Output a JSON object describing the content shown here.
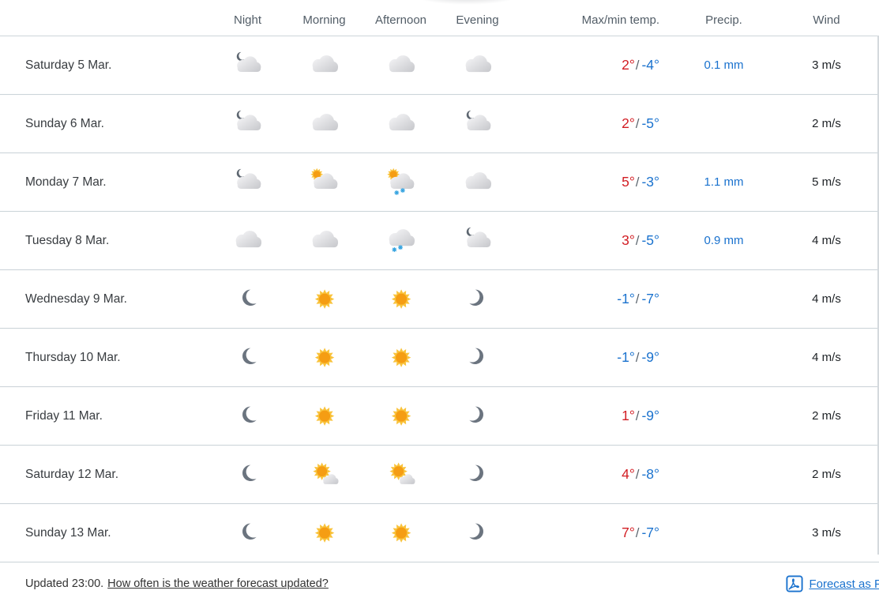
{
  "table": {
    "header": {
      "day": "",
      "night": "Night",
      "morning": "Morning",
      "afternoon": "Afternoon",
      "evening": "Evening",
      "temp": "Max/min temp.",
      "precip": "Precip.",
      "wind": "Wind"
    },
    "temp_separator": "/",
    "rows": [
      {
        "day": "Saturday 5 Mar.",
        "night": "moon-cloud",
        "morning": "cloud",
        "afternoon": "cloud",
        "evening": "cloud",
        "temp_max": "2°",
        "temp_min": "-4°",
        "precip": "0.1 mm",
        "wind": "3 m/s"
      },
      {
        "day": "Sunday 6 Mar.",
        "night": "moon-cloud",
        "morning": "cloud",
        "afternoon": "cloud",
        "evening": "moon-cloud",
        "temp_max": "2°",
        "temp_min": "-5°",
        "precip": "",
        "wind": "2 m/s"
      },
      {
        "day": "Monday 7 Mar.",
        "night": "moon-cloud",
        "morning": "sun-cloud",
        "afternoon": "sun-cloud-snow",
        "evening": "cloud",
        "temp_max": "5°",
        "temp_min": "-3°",
        "precip": "1.1 mm",
        "wind": "5 m/s"
      },
      {
        "day": "Tuesday 8 Mar.",
        "night": "cloud",
        "morning": "cloud",
        "afternoon": "cloud-snow",
        "evening": "moon-cloud",
        "temp_max": "3°",
        "temp_min": "-5°",
        "precip": "0.9 mm",
        "wind": "4 m/s"
      },
      {
        "day": "Wednesday 9 Mar.",
        "night": "moon",
        "morning": "sun",
        "afternoon": "sun",
        "evening": "moon-flip",
        "temp_max": "-1°",
        "temp_min": "-7°",
        "precip": "",
        "wind": "4 m/s"
      },
      {
        "day": "Thursday 10 Mar.",
        "night": "moon",
        "morning": "sun",
        "afternoon": "sun",
        "evening": "moon-flip",
        "temp_max": "-1°",
        "temp_min": "-9°",
        "precip": "",
        "wind": "4 m/s"
      },
      {
        "day": "Friday 11 Mar.",
        "night": "moon",
        "morning": "sun",
        "afternoon": "sun",
        "evening": "moon-flip",
        "temp_max": "1°",
        "temp_min": "-9°",
        "precip": "",
        "wind": "2 m/s"
      },
      {
        "day": "Saturday 12 Mar.",
        "night": "moon",
        "morning": "sun-small-cloud",
        "afternoon": "sun-small-cloud",
        "evening": "moon-flip",
        "temp_max": "4°",
        "temp_min": "-8°",
        "precip": "",
        "wind": "2 m/s"
      },
      {
        "day": "Sunday 13 Mar.",
        "night": "moon",
        "morning": "sun",
        "afternoon": "sun",
        "evening": "moon-flip",
        "temp_max": "7°",
        "temp_min": "-7°",
        "precip": "",
        "wind": "3 m/s"
      }
    ]
  },
  "footer": {
    "updated_text": "Updated 23:00.",
    "update_link": "How often is the weather forecast updated?",
    "pdf_link": "Forecast as P",
    "pdf_icon": "pdf-icon"
  },
  "colors": {
    "temp_max_red": "#d21d23",
    "temp_min_blue": "#1a72ce",
    "precip_blue": "#1a72ce",
    "link_blue": "#1a72ce",
    "header_text": "#525d67",
    "row_border": "#ccd4d9",
    "sun_core": "#f59d13",
    "sun_rays": "#f9c33c",
    "moon_gray": "#6b747f",
    "snow_blue": "#35a3e0"
  }
}
